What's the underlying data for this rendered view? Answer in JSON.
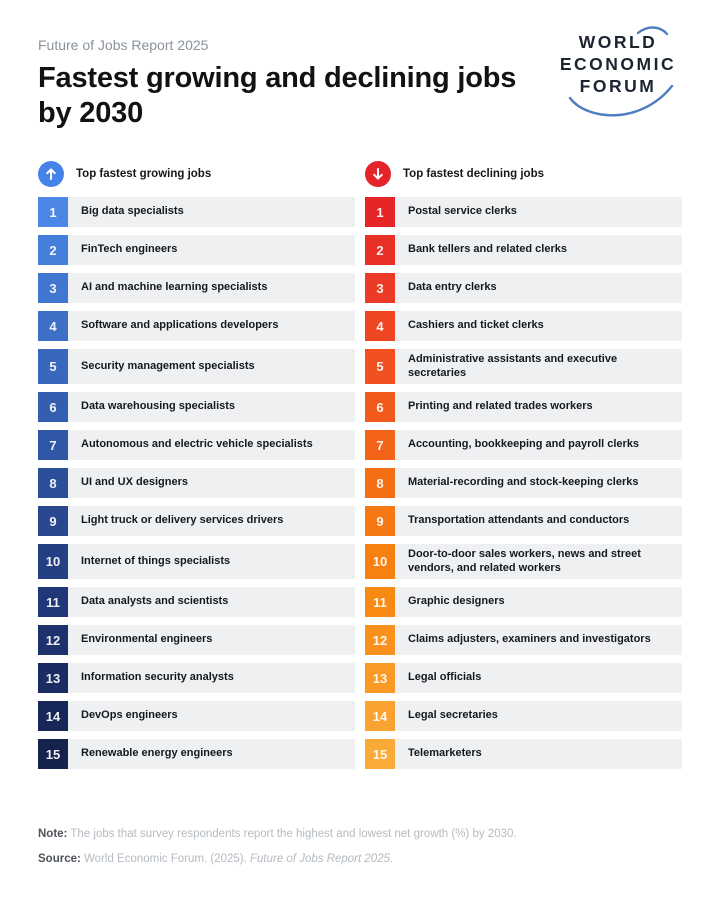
{
  "header": {
    "eyebrow": "Future of Jobs Report 2025",
    "title": "Fastest growing and declining jobs by 2030",
    "logo_lines": [
      "WORLD",
      "ECONOMIC",
      "FORUM"
    ],
    "logo_text_color": "#1b2430",
    "logo_arc_color": "#4d7ec0"
  },
  "columns": [
    {
      "id": "growing",
      "label": "Top fastest growing jobs",
      "icon": "arrow-up-icon",
      "icon_color": "#4583e8",
      "items": [
        {
          "rank": 1,
          "label": "Big data specialists",
          "badge_color": "#4c87e6"
        },
        {
          "rank": 2,
          "label": "FinTech engineers",
          "badge_color": "#467fdb"
        },
        {
          "rank": 3,
          "label": "AI and machine learning specialists",
          "badge_color": "#4277d1"
        },
        {
          "rank": 4,
          "label": "Software and applications developers",
          "badge_color": "#3d6fc6"
        },
        {
          "rank": 5,
          "label": "Security management specialists",
          "badge_color": "#3967bb"
        },
        {
          "rank": 6,
          "label": "Data warehousing specialists",
          "badge_color": "#345fb0"
        },
        {
          "rank": 7,
          "label": "Autonomous and electric vehicle specialists",
          "badge_color": "#3057a5"
        },
        {
          "rank": 8,
          "label": "UI and UX designers",
          "badge_color": "#2c4f9a"
        },
        {
          "rank": 9,
          "label": "Light truck or delivery services drivers",
          "badge_color": "#28478f"
        },
        {
          "rank": 10,
          "label": "Internet of things specialists",
          "badge_color": "#243f83"
        },
        {
          "rank": 11,
          "label": "Data analysts and scientists",
          "badge_color": "#203878"
        },
        {
          "rank": 12,
          "label": "Environmental engineers",
          "badge_color": "#1d326d"
        },
        {
          "rank": 13,
          "label": "Information security analysts",
          "badge_color": "#1a2c62"
        },
        {
          "rank": 14,
          "label": "DevOps engineers",
          "badge_color": "#172757"
        },
        {
          "rank": 15,
          "label": "Renewable energy engineers",
          "badge_color": "#15224d"
        }
      ]
    },
    {
      "id": "declining",
      "label": "Top fastest declining jobs",
      "icon": "arrow-down-icon",
      "icon_color": "#e5232a",
      "items": [
        {
          "rank": 1,
          "label": "Postal service clerks",
          "badge_color": "#e62529"
        },
        {
          "rank": 2,
          "label": "Bank tellers and related clerks",
          "badge_color": "#e93027"
        },
        {
          "rank": 3,
          "label": "Data entry clerks",
          "badge_color": "#eb3a25"
        },
        {
          "rank": 4,
          "label": "Cashiers and ticket clerks",
          "badge_color": "#ee4522"
        },
        {
          "rank": 5,
          "label": "Administrative assistants and executive secretaries",
          "badge_color": "#f04f1f"
        },
        {
          "rank": 6,
          "label": "Printing and related trades workers",
          "badge_color": "#f25a1c"
        },
        {
          "rank": 7,
          "label": "Accounting, bookkeeping and payroll clerks",
          "badge_color": "#f36419"
        },
        {
          "rank": 8,
          "label": "Material-recording and stock-keeping clerks",
          "badge_color": "#f56e15"
        },
        {
          "rank": 9,
          "label": "Transportation attendants and conductors",
          "badge_color": "#f67812"
        },
        {
          "rank": 10,
          "label": "Door-to-door sales workers, news and street vendors, and related workers",
          "badge_color": "#f78110"
        },
        {
          "rank": 11,
          "label": "Graphic designers",
          "badge_color": "#f88a14"
        },
        {
          "rank": 12,
          "label": "Claims adjusters, examiners and investigators",
          "badge_color": "#f8921c"
        },
        {
          "rank": 13,
          "label": "Legal officials",
          "badge_color": "#f99a25"
        },
        {
          "rank": 14,
          "label": "Legal secretaries",
          "badge_color": "#f9a22f"
        },
        {
          "rank": 15,
          "label": "Telemarketers",
          "badge_color": "#faaa39"
        }
      ]
    }
  ],
  "footer": {
    "note_label": "Note:",
    "note_text": " The jobs that survey respondents report the highest and lowest net growth (%) by 2030.",
    "source_label": "Source:",
    "source_text": " World Economic Forum. (2025). ",
    "source_italic": "Future of Jobs Report 2025."
  },
  "chart_data": {
    "type": "table",
    "title": "Fastest growing and declining jobs by 2030",
    "columns": [
      "Top fastest growing jobs",
      "Top fastest declining jobs"
    ],
    "growing_ranked": [
      "Big data specialists",
      "FinTech engineers",
      "AI and machine learning specialists",
      "Software and applications developers",
      "Security management specialists",
      "Data warehousing specialists",
      "Autonomous and electric vehicle specialists",
      "UI and UX designers",
      "Light truck or delivery services drivers",
      "Internet of things specialists",
      "Data analysts and scientists",
      "Environmental engineers",
      "Information security analysts",
      "DevOps engineers",
      "Renewable energy engineers"
    ],
    "declining_ranked": [
      "Postal service clerks",
      "Bank tellers and related clerks",
      "Data entry clerks",
      "Cashiers and ticket clerks",
      "Administrative assistants and executive secretaries",
      "Printing and related trades workers",
      "Accounting, bookkeeping and payroll clerks",
      "Material-recording and stock-keeping clerks",
      "Transportation attendants and conductors",
      "Door-to-door sales workers, news and street vendors, and related workers",
      "Graphic designers",
      "Claims adjusters, examiners and investigators",
      "Legal officials",
      "Legal secretaries",
      "Telemarketers"
    ]
  }
}
